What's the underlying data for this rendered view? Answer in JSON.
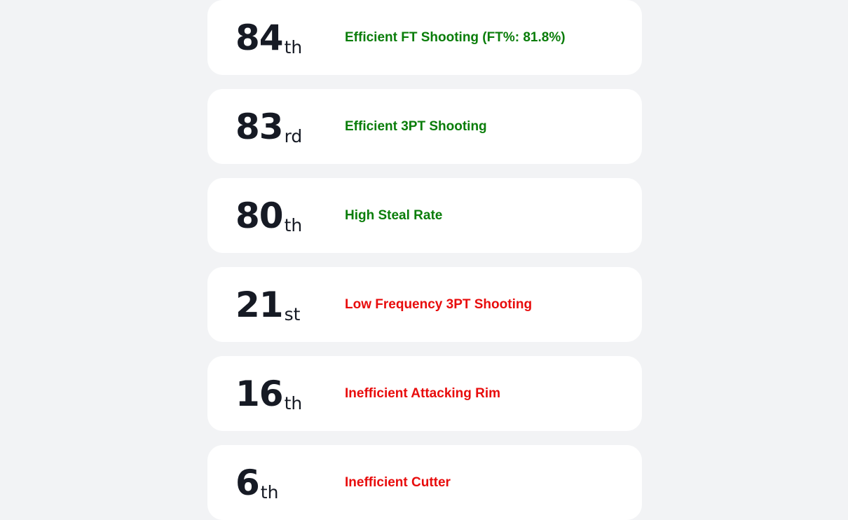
{
  "colors": {
    "strength": "#0a7d0a",
    "weakness": "#e80c0c",
    "rank_text": "#161a24"
  },
  "rankings": [
    {
      "rank": "84",
      "suffix": "th",
      "label": "Efficient FT Shooting (FT%: 81.8%)",
      "kind": "strength"
    },
    {
      "rank": "83",
      "suffix": "rd",
      "label": "Efficient 3PT Shooting",
      "kind": "strength"
    },
    {
      "rank": "80",
      "suffix": "th",
      "label": "High Steal Rate",
      "kind": "strength"
    },
    {
      "rank": "21",
      "suffix": "st",
      "label": "Low Frequency 3PT Shooting",
      "kind": "weakness"
    },
    {
      "rank": "16",
      "suffix": "th",
      "label": "Inefficient Attacking Rim",
      "kind": "weakness"
    },
    {
      "rank": "6",
      "suffix": "th",
      "label": "Inefficient Cutter",
      "kind": "weakness"
    }
  ]
}
